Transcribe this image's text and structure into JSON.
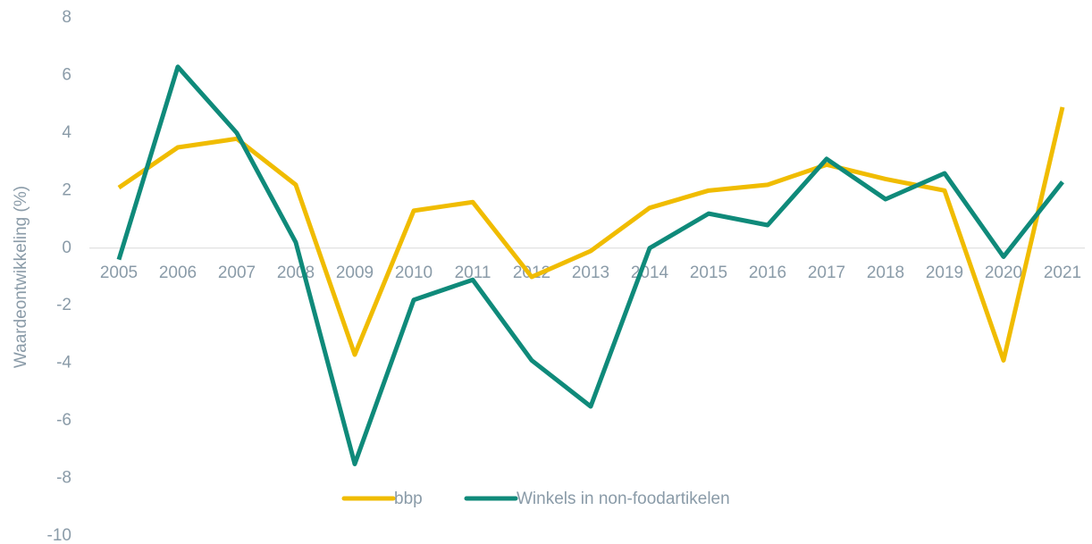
{
  "chart_data": {
    "type": "line",
    "y_label": "Waardeontwikkeling (%)",
    "categories": [
      "2005",
      "2006",
      "2007",
      "2008",
      "2009",
      "2010",
      "2011",
      "2012",
      "2013",
      "2014",
      "2015",
      "2016",
      "2017",
      "2018",
      "2019",
      "2020",
      "2021"
    ],
    "series": [
      {
        "name": "bbp",
        "color": "#f0bc00",
        "values": [
          2.1,
          3.5,
          3.8,
          2.2,
          -3.7,
          1.3,
          1.6,
          -1.0,
          -0.1,
          1.4,
          2.0,
          2.2,
          2.9,
          2.4,
          2.0,
          -3.9,
          4.9
        ]
      },
      {
        "name": "Winkels in non-foodartikelen",
        "color": "#0f8a7a",
        "values": [
          -0.4,
          6.3,
          4.0,
          0.2,
          -7.5,
          -1.8,
          -1.1,
          -3.9,
          -5.5,
          0.0,
          1.2,
          0.8,
          3.1,
          1.7,
          2.6,
          -0.3,
          2.3
        ]
      }
    ],
    "ylim": [
      -10,
      8
    ],
    "yticks": [
      -10,
      -8,
      -6,
      -4,
      -2,
      0,
      2,
      4,
      6,
      8
    ],
    "grid": false,
    "legend": "bottom"
  }
}
